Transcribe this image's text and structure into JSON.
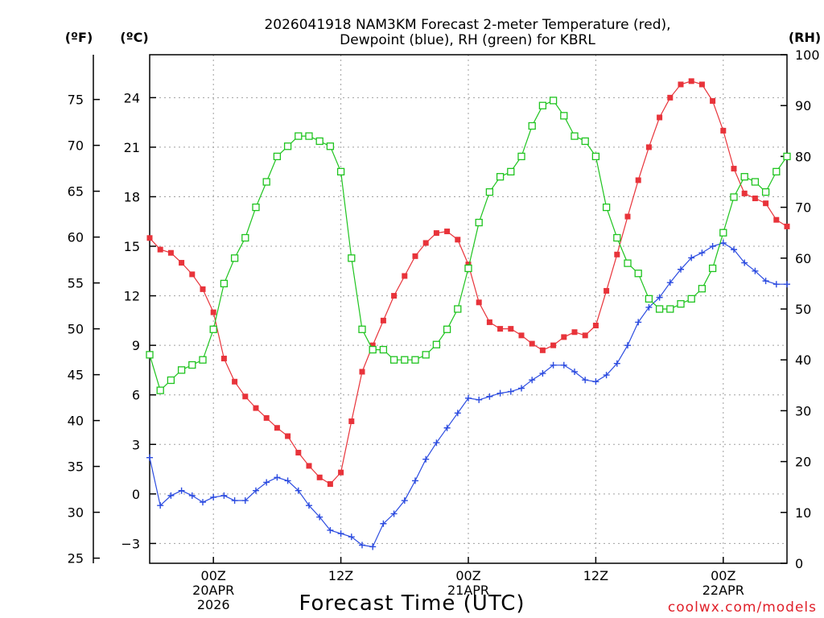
{
  "title": {
    "line1": "2026041918 NAM3KM Forecast 2-meter Temperature (red),",
    "line2": "Dewpoint (blue), RH (green) for KBRL"
  },
  "credit": "coolwx.com/models",
  "chart_data": {
    "type": "line",
    "title": "2026041918 NAM3KM Forecast 2-meter Temperature (red), Dewpoint (blue), RH (green) for KBRL",
    "xlabel": "Forecast Time (UTC)",
    "x_unit": "forecast hour from 2026-04-19 18Z",
    "xlim": [
      0,
      60
    ],
    "x_ticks": [
      {
        "hour": 6,
        "lines": [
          "00Z",
          "20APR",
          "2026"
        ]
      },
      {
        "hour": 18,
        "lines": [
          "12Z"
        ]
      },
      {
        "hour": 30,
        "lines": [
          "00Z",
          "21APR"
        ]
      },
      {
        "hour": 42,
        "lines": [
          "12Z"
        ]
      },
      {
        "hour": 54,
        "lines": [
          "00Z",
          "22APR"
        ]
      }
    ],
    "y_left_f": {
      "label": "(ºF)",
      "ticks": [
        25,
        30,
        35,
        40,
        45,
        50,
        55,
        60,
        65,
        70,
        75
      ]
    },
    "y_left_c": {
      "label": "(ºC)",
      "ylim": [
        -4.2,
        26.6
      ],
      "ticks": [
        -3,
        0,
        3,
        6,
        9,
        12,
        15,
        18,
        21,
        24
      ],
      "tick_labels": [
        "−3",
        "0",
        "3",
        "6",
        "9",
        "12",
        "15",
        "18",
        "21",
        "24"
      ]
    },
    "y_right_rh": {
      "label": "(RH)",
      "ylim": [
        0,
        100
      ],
      "ticks": [
        0,
        10,
        20,
        30,
        40,
        50,
        60,
        70,
        80,
        90,
        100
      ]
    },
    "series": [
      {
        "name": "Temperature",
        "unit": "C",
        "axis": "c",
        "color": "#e8333a",
        "marker": "filled-square",
        "x": [
          0,
          1,
          2,
          3,
          4,
          5,
          6,
          7,
          8,
          9,
          10,
          11,
          12,
          13,
          14,
          15,
          16,
          17,
          18,
          19,
          20,
          21,
          22,
          23,
          24,
          25,
          26,
          27,
          28,
          29,
          30,
          31,
          32,
          33,
          34,
          35,
          36,
          37,
          38,
          39,
          40,
          41,
          42,
          43,
          44,
          45,
          46,
          47,
          48,
          49,
          50,
          51,
          52,
          53,
          54,
          55,
          56,
          57,
          58,
          59,
          60
        ],
        "values": [
          15.5,
          14.8,
          14.6,
          14.0,
          13.3,
          12.4,
          11.0,
          8.2,
          6.8,
          5.9,
          5.2,
          4.6,
          4.0,
          3.5,
          2.5,
          1.7,
          1.0,
          0.6,
          1.3,
          4.4,
          7.4,
          9.0,
          10.5,
          12.0,
          13.2,
          14.4,
          15.2,
          15.8,
          15.9,
          15.4,
          13.9,
          11.6,
          10.4,
          10.0,
          10.0,
          9.6,
          9.1,
          8.7,
          9.0,
          9.5,
          9.8,
          9.6,
          10.2,
          12.3,
          14.5,
          16.8,
          19.0,
          21.0,
          22.8,
          24.0,
          24.8,
          25.0,
          24.8,
          23.8,
          22.0,
          19.7,
          18.2,
          17.9,
          17.6,
          16.6,
          16.2
        ]
      },
      {
        "name": "Dewpoint",
        "unit": "C",
        "axis": "c",
        "color": "#2b4be0",
        "marker": "plus",
        "x": [
          0,
          1,
          2,
          3,
          4,
          5,
          6,
          7,
          8,
          9,
          10,
          11,
          12,
          13,
          14,
          15,
          16,
          17,
          18,
          19,
          20,
          21,
          22,
          23,
          24,
          25,
          26,
          27,
          28,
          29,
          30,
          31,
          32,
          33,
          34,
          35,
          36,
          37,
          38,
          39,
          40,
          41,
          42,
          43,
          44,
          45,
          46,
          47,
          48,
          49,
          50,
          51,
          52,
          53,
          54,
          55,
          56,
          57,
          58,
          59,
          60
        ],
        "values": [
          2.2,
          -0.7,
          -0.1,
          0.2,
          -0.1,
          -0.5,
          -0.2,
          -0.1,
          -0.4,
          -0.4,
          0.2,
          0.7,
          1.0,
          0.8,
          0.2,
          -0.7,
          -1.4,
          -2.2,
          -2.4,
          -2.6,
          -3.1,
          -3.2,
          -1.8,
          -1.2,
          -0.4,
          0.8,
          2.1,
          3.1,
          4.0,
          4.9,
          5.8,
          5.7,
          5.9,
          6.1,
          6.2,
          6.4,
          6.9,
          7.3,
          7.8,
          7.8,
          7.4,
          6.9,
          6.8,
          7.2,
          7.9,
          9.0,
          10.4,
          11.3,
          11.9,
          12.8,
          13.6,
          14.3,
          14.6,
          15.0,
          15.2,
          14.8,
          14.0,
          13.5,
          12.9,
          12.7,
          12.7
        ]
      },
      {
        "name": "RH",
        "unit": "%",
        "axis": "rh",
        "color": "#1fc41f",
        "marker": "open-square",
        "x": [
          0,
          1,
          2,
          3,
          4,
          5,
          6,
          7,
          8,
          9,
          10,
          11,
          12,
          13,
          14,
          15,
          16,
          17,
          18,
          19,
          20,
          21,
          22,
          23,
          24,
          25,
          26,
          27,
          28,
          29,
          30,
          31,
          32,
          33,
          34,
          35,
          36,
          37,
          38,
          39,
          40,
          41,
          42,
          43,
          44,
          45,
          46,
          47,
          48,
          49,
          50,
          51,
          52,
          53,
          54,
          55,
          56,
          57,
          58,
          59,
          60
        ],
        "values": [
          41,
          34,
          36,
          38,
          39,
          40,
          46,
          55,
          60,
          64,
          70,
          75,
          80,
          82,
          84,
          84,
          83,
          82,
          77,
          60,
          46,
          42,
          42,
          40,
          40,
          40,
          41,
          43,
          46,
          50,
          58,
          67,
          73,
          76,
          77,
          80,
          86,
          90,
          91,
          88,
          84,
          83,
          80,
          70,
          64,
          59,
          57,
          52,
          50,
          50,
          51,
          52,
          54,
          58,
          65,
          72,
          76,
          75,
          73,
          77,
          80
        ]
      }
    ]
  }
}
